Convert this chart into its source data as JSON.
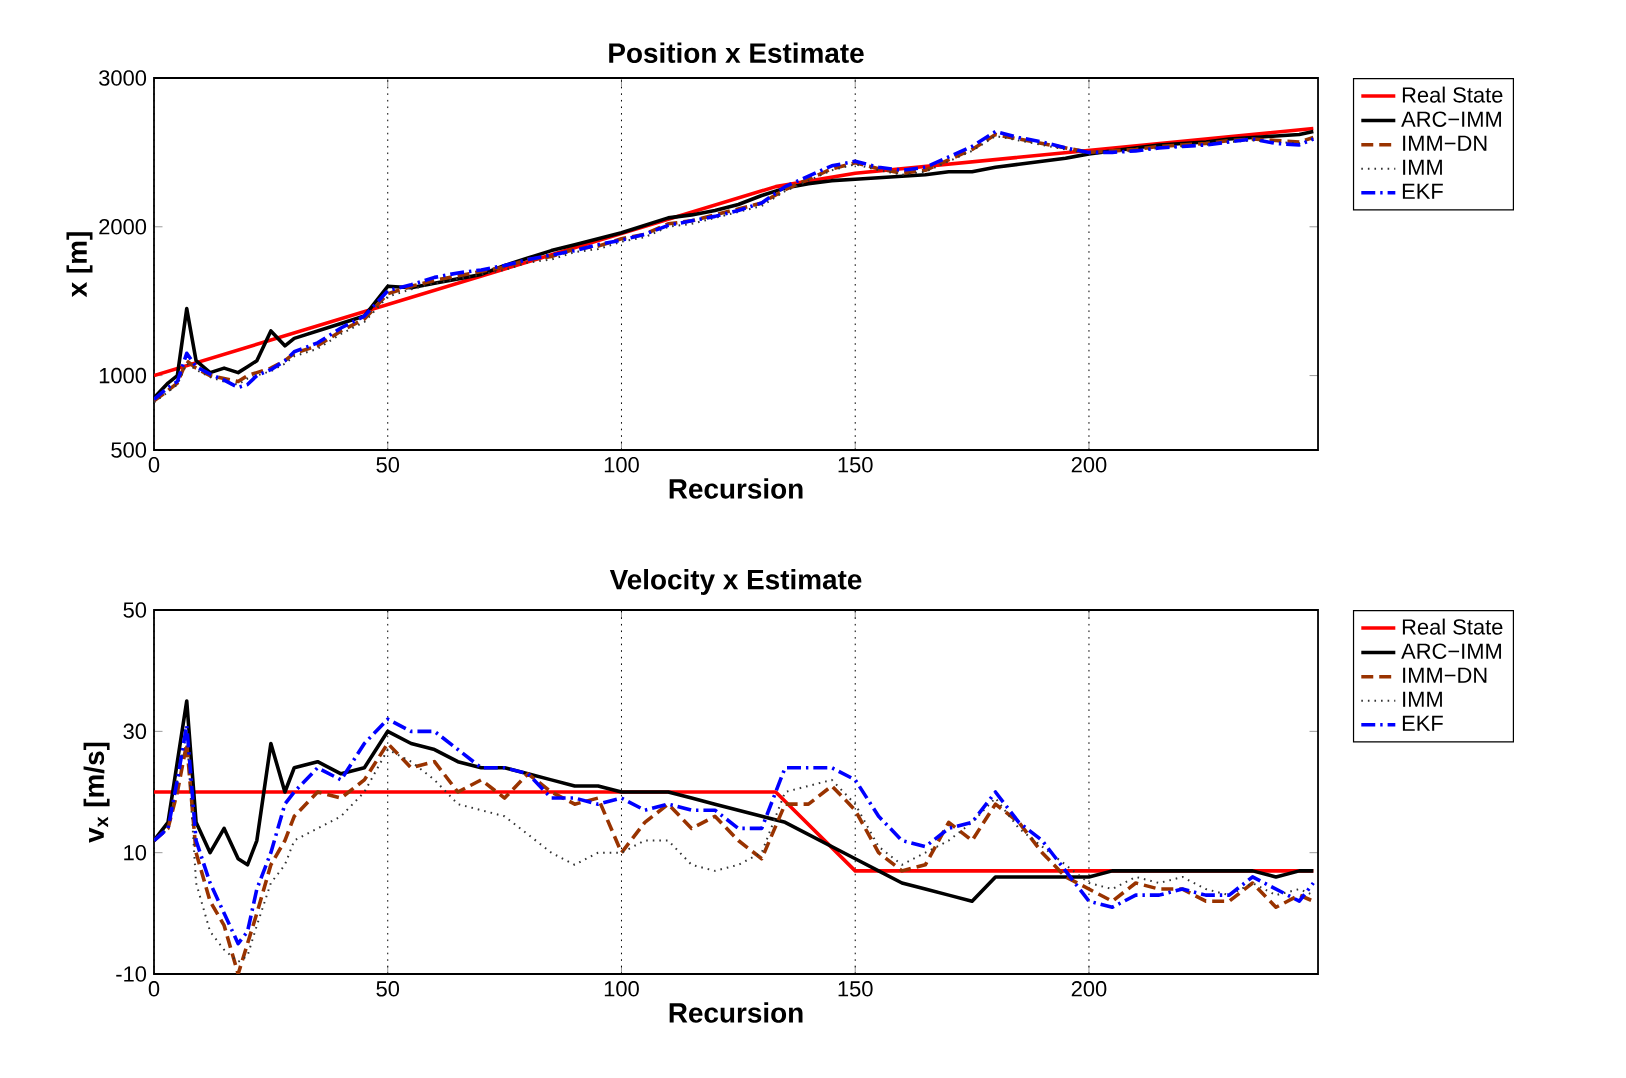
{
  "chart_data": [
    {
      "type": "line",
      "title": "Position x Estimate",
      "xlabel": "Recursion",
      "ylabel": "x [m]",
      "x": [
        0,
        3,
        5,
        7,
        9,
        12,
        15,
        18,
        20,
        22,
        25,
        28,
        30,
        35,
        40,
        45,
        50,
        55,
        60,
        65,
        70,
        75,
        80,
        85,
        90,
        95,
        100,
        105,
        110,
        115,
        120,
        125,
        130,
        135,
        140,
        145,
        150,
        155,
        160,
        165,
        170,
        175,
        180,
        185,
        190,
        195,
        200,
        205,
        210,
        215,
        220,
        225,
        230,
        235,
        240,
        245,
        248
      ],
      "series": [
        {
          "name": "Real State",
          "color": "#ff0000",
          "line_style": "solid",
          "x": [
            0,
            133,
            150,
            248
          ],
          "values": [
            1000,
            2270,
            2360,
            2660
          ]
        },
        {
          "name": "ARC−IMM",
          "color": "#000000",
          "line_style": "solid",
          "values": [
            850,
            950,
            1000,
            1450,
            1100,
            1020,
            1050,
            1020,
            1060,
            1100,
            1300,
            1200,
            1250,
            1300,
            1350,
            1400,
            1600,
            1590,
            1620,
            1650,
            1680,
            1740,
            1790,
            1840,
            1880,
            1920,
            1960,
            2010,
            2060,
            2080,
            2110,
            2150,
            2210,
            2260,
            2290,
            2310,
            2320,
            2330,
            2340,
            2350,
            2370,
            2370,
            2400,
            2420,
            2440,
            2460,
            2490,
            2510,
            2530,
            2550,
            2560,
            2570,
            2590,
            2600,
            2610,
            2620,
            2640
          ]
        },
        {
          "name": "IMM−DN",
          "color": "#993300",
          "line_style": "dashed",
          "values": [
            830,
            900,
            950,
            1100,
            1050,
            1000,
            980,
            960,
            1000,
            1020,
            1050,
            1100,
            1150,
            1200,
            1300,
            1380,
            1550,
            1600,
            1640,
            1670,
            1700,
            1730,
            1780,
            1800,
            1850,
            1870,
            1920,
            1950,
            2020,
            2040,
            2080,
            2120,
            2160,
            2250,
            2320,
            2390,
            2430,
            2390,
            2360,
            2380,
            2450,
            2520,
            2620,
            2590,
            2560,
            2530,
            2500,
            2510,
            2520,
            2540,
            2550,
            2560,
            2580,
            2590,
            2580,
            2570,
            2600
          ]
        },
        {
          "name": "IMM",
          "color": "#333333",
          "line_style": "dotted",
          "values": [
            820,
            890,
            940,
            1080,
            1040,
            990,
            960,
            940,
            980,
            1000,
            1030,
            1080,
            1130,
            1180,
            1280,
            1360,
            1530,
            1580,
            1620,
            1650,
            1680,
            1710,
            1760,
            1780,
            1830,
            1850,
            1900,
            1930,
            2000,
            2020,
            2060,
            2100,
            2140,
            2240,
            2310,
            2380,
            2420,
            2380,
            2350,
            2370,
            2440,
            2510,
            2610,
            2580,
            2550,
            2520,
            2490,
            2500,
            2510,
            2530,
            2540,
            2550,
            2570,
            2580,
            2570,
            2560,
            2590
          ]
        },
        {
          "name": "EKF",
          "color": "#0000ff",
          "line_style": "dashdot",
          "values": [
            840,
            920,
            960,
            1150,
            1060,
            1010,
            970,
            920,
            940,
            1000,
            1040,
            1100,
            1160,
            1220,
            1320,
            1400,
            1570,
            1610,
            1660,
            1690,
            1710,
            1740,
            1780,
            1810,
            1840,
            1880,
            1910,
            1950,
            2010,
            2040,
            2070,
            2110,
            2160,
            2270,
            2340,
            2410,
            2440,
            2400,
            2380,
            2400,
            2470,
            2540,
            2640,
            2600,
            2570,
            2530,
            2500,
            2500,
            2510,
            2530,
            2540,
            2550,
            2570,
            2590,
            2560,
            2550,
            2590
          ]
        }
      ],
      "xlim": [
        0,
        249
      ],
      "ylim": [
        500,
        3000
      ],
      "xticks": [
        0,
        50,
        100,
        150,
        200
      ],
      "yticks": [
        500,
        1000,
        2000,
        3000
      ],
      "grid": "x",
      "legend": "right"
    },
    {
      "type": "line",
      "title": "Velocity x Estimate",
      "xlabel": "Recursion",
      "ylabel": "v$_{x}$ [m/s]",
      "x": [
        0,
        3,
        5,
        7,
        9,
        12,
        15,
        18,
        20,
        22,
        25,
        28,
        30,
        35,
        40,
        45,
        50,
        55,
        60,
        65,
        70,
        75,
        80,
        85,
        90,
        95,
        100,
        105,
        110,
        115,
        120,
        125,
        130,
        135,
        140,
        145,
        150,
        155,
        160,
        165,
        170,
        175,
        180,
        185,
        190,
        195,
        200,
        205,
        210,
        215,
        220,
        225,
        230,
        235,
        240,
        245,
        248
      ],
      "series": [
        {
          "name": "Real State",
          "color": "#ff0000",
          "line_style": "solid",
          "x": [
            0,
            133,
            150,
            248
          ],
          "values": [
            20,
            20,
            7,
            7
          ]
        },
        {
          "name": "ARC−IMM",
          "color": "#000000",
          "line_style": "solid",
          "values": [
            12,
            15,
            25,
            35,
            15,
            10,
            14,
            9,
            8,
            12,
            28,
            20,
            24,
            25,
            23,
            24,
            30,
            28,
            27,
            25,
            24,
            24,
            23,
            22,
            21,
            21,
            20,
            20,
            20,
            19,
            18,
            17,
            16,
            15,
            13,
            11,
            9,
            7,
            5,
            4,
            3,
            2,
            6,
            6,
            6,
            6,
            6,
            7,
            7,
            7,
            7,
            7,
            7,
            7,
            6,
            7,
            7
          ]
        },
        {
          "name": "IMM−DN",
          "color": "#993300",
          "line_style": "dashed",
          "values": [
            12,
            14,
            20,
            28,
            10,
            2,
            -2,
            -10,
            -5,
            0,
            8,
            12,
            16,
            20,
            19,
            22,
            28,
            24,
            25,
            20,
            22,
            19,
            23,
            20,
            18,
            19,
            10,
            15,
            18,
            14,
            16,
            12,
            9,
            18,
            18,
            21,
            17,
            10,
            7,
            8,
            15,
            12,
            18,
            15,
            10,
            6,
            4,
            2,
            5,
            4,
            4,
            2,
            2,
            5,
            1,
            3,
            2
          ]
        },
        {
          "name": "IMM",
          "color": "#333333",
          "line_style": "dotted",
          "values": [
            12,
            14,
            22,
            30,
            5,
            -3,
            -6,
            -8,
            -7,
            -2,
            5,
            8,
            12,
            14,
            16,
            20,
            27,
            25,
            22,
            18,
            17,
            16,
            13,
            10,
            8,
            10,
            10,
            12,
            12,
            8,
            7,
            8,
            10,
            20,
            21,
            22,
            18,
            11,
            8,
            10,
            12,
            15,
            19,
            14,
            11,
            8,
            5,
            4,
            6,
            5,
            6,
            4,
            3,
            5,
            3,
            4,
            3
          ]
        },
        {
          "name": "EKF",
          "color": "#0000ff",
          "line_style": "dashdot",
          "values": [
            12,
            14,
            22,
            31,
            12,
            5,
            0,
            -5,
            -3,
            4,
            10,
            18,
            20,
            24,
            22,
            28,
            32,
            30,
            30,
            27,
            24,
            24,
            23,
            19,
            19,
            18,
            19,
            17,
            18,
            17,
            17,
            14,
            14,
            24,
            24,
            24,
            22,
            16,
            12,
            11,
            14,
            15,
            20,
            15,
            12,
            7,
            2,
            1,
            3,
            3,
            4,
            3,
            3,
            6,
            4,
            2,
            5
          ]
        }
      ],
      "xlim": [
        0,
        249
      ],
      "ylim": [
        -10,
        50
      ],
      "xticks": [
        0,
        50,
        100,
        150,
        200
      ],
      "yticks": [
        -10,
        10,
        30,
        50
      ],
      "grid": "x",
      "legend": "right"
    }
  ]
}
